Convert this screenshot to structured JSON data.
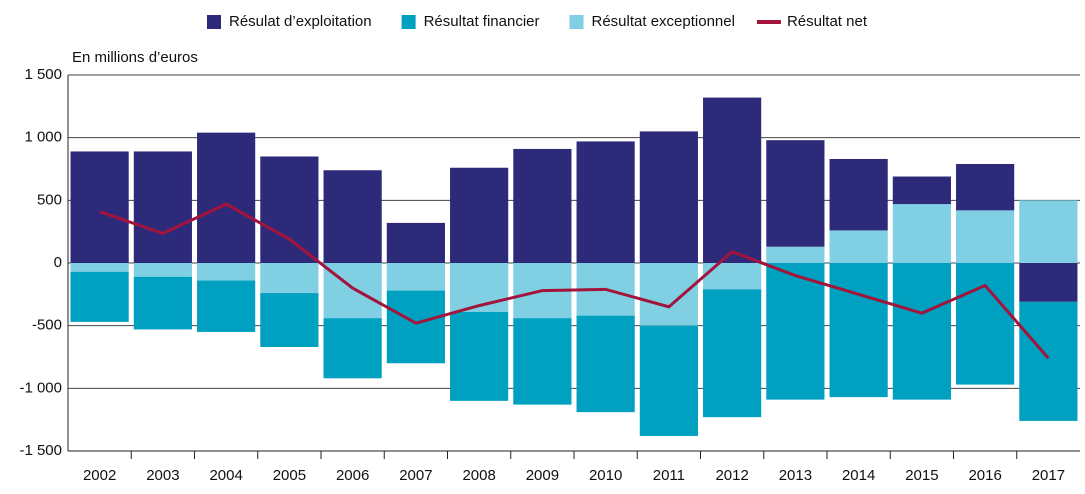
{
  "chart_data": {
    "type": "bar",
    "stacked": true,
    "y_label": "En millions d’euros",
    "categories": [
      "2002",
      "2003",
      "2004",
      "2005",
      "2006",
      "2007",
      "2008",
      "2009",
      "2010",
      "2011",
      "2012",
      "2013",
      "2014",
      "2015",
      "2016",
      "2017"
    ],
    "series": [
      {
        "name": "Résulat d’exploitation",
        "color": "#2e2a7a",
        "values": [
          890,
          890,
          1040,
          850,
          740,
          320,
          760,
          910,
          970,
          1050,
          1320,
          850,
          570,
          220,
          370,
          -310
        ]
      },
      {
        "name": "Résultat financier",
        "color": "#00a0c0",
        "values": [
          -400,
          -420,
          -410,
          -430,
          -480,
          -580,
          -710,
          -690,
          -770,
          -880,
          -1020,
          -1090,
          -1070,
          -1090,
          -970,
          -950
        ]
      },
      {
        "name": "Résultat exceptionnel",
        "color": "#80cfe2",
        "values": [
          -70,
          -110,
          -140,
          -240,
          -440,
          -220,
          -390,
          -440,
          -420,
          -500,
          -210,
          130,
          260,
          470,
          420,
          500
        ]
      },
      {
        "name": "Résultat net",
        "color": "#a3143c",
        "type": "line",
        "values": [
          410,
          236,
          470,
          190,
          -200,
          -480,
          -340,
          -220,
          -210,
          -350,
          90,
          -100,
          -250,
          -400,
          -180,
          -760
        ]
      }
    ],
    "ylim": [
      -1500,
      1500
    ],
    "yticks": [
      {
        "value": 1500,
        "label": "1 500"
      },
      {
        "value": 1000,
        "label": "1 000"
      },
      500,
      0,
      -500,
      {
        "value": -1000,
        "label": "-1 000"
      },
      {
        "value": -1500,
        "label": "-1 500"
      }
    ],
    "grid": true
  }
}
